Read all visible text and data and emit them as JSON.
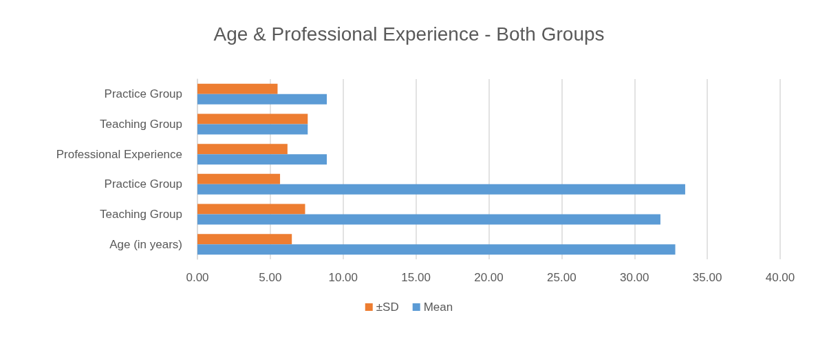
{
  "chart_data": {
    "type": "bar",
    "orientation": "horizontal",
    "title": "Age & Professional Experience - Both Groups",
    "categories": [
      "Practice Group",
      "Teaching Group",
      "Professional Experience",
      "Practice Group",
      "Teaching Group",
      "Age (in years)"
    ],
    "series": [
      {
        "name": "±SD",
        "color": "#ed7d31",
        "values": [
          5.5,
          7.57,
          6.18,
          5.67,
          7.39,
          6.48
        ]
      },
      {
        "name": "Mean",
        "color": "#5b9bd5",
        "values": [
          8.88,
          7.57,
          8.88,
          33.48,
          31.78,
          32.8
        ]
      }
    ],
    "xlim": [
      0,
      40
    ],
    "xticks": [
      {
        "value": 0,
        "label": "0.00"
      },
      {
        "value": 5,
        "label": "5.00"
      },
      {
        "value": 10,
        "label": "10.00"
      },
      {
        "value": 15,
        "label": "15.00"
      },
      {
        "value": 20,
        "label": "20.00"
      },
      {
        "value": 25,
        "label": "25.00"
      },
      {
        "value": 30,
        "label": "30.00"
      },
      {
        "value": 35,
        "label": "35.00"
      },
      {
        "value": 40,
        "label": "40.00"
      }
    ],
    "grid": "x",
    "legend": "bottom"
  }
}
